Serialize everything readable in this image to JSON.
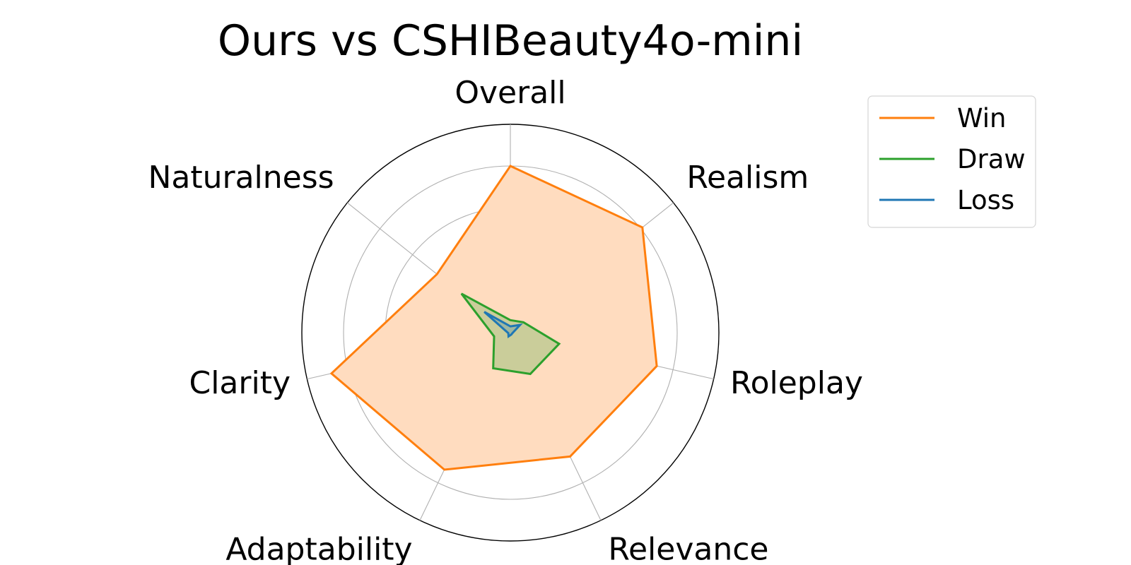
{
  "chart_data": {
    "type": "radar",
    "title": "Ours vs CSHIBeauty4o-mini",
    "categories": [
      "Overall",
      "Realism",
      "Roleplay",
      "Relevance",
      "Adaptability",
      "Clarity",
      "Naturalness"
    ],
    "rmax": 100,
    "rings": [
      20,
      40,
      60,
      80,
      100
    ],
    "grid": true,
    "legend_position": "upper-right",
    "series": [
      {
        "name": "Win",
        "color": "#ff7f0e",
        "fill_color": "#ffdcbf",
        "values": [
          80,
          81,
          72,
          66,
          73,
          88,
          45
        ]
      },
      {
        "name": "Draw",
        "color": "#2ca02c",
        "values": [
          6,
          8,
          24,
          22,
          19,
          8,
          30
        ]
      },
      {
        "name": "Loss",
        "color": "#1f77b4",
        "values": [
          3,
          6,
          1,
          1,
          2,
          1,
          16
        ]
      }
    ]
  }
}
